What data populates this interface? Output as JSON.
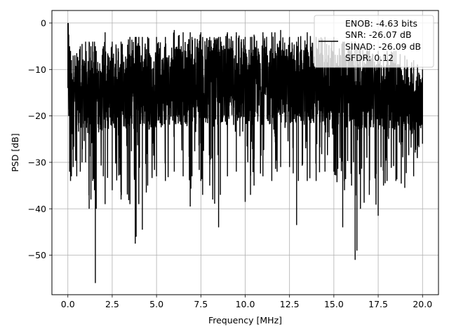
{
  "chart_data": {
    "type": "line",
    "xlabel": "Frequency [MHz]",
    "ylabel": "PSD [dB]",
    "xlim": [
      -0.9,
      20.9
    ],
    "ylim": [
      -58.5,
      2.7
    ],
    "x_ticks": [
      0.0,
      2.5,
      5.0,
      7.5,
      10.0,
      12.5,
      15.0,
      17.5,
      20.0
    ],
    "x_tick_labels": [
      "0.0",
      "2.5",
      "5.0",
      "7.5",
      "10.0",
      "12.5",
      "15.0",
      "17.5",
      "20.0"
    ],
    "y_ticks": [
      0,
      -10,
      -20,
      -30,
      -40,
      -50
    ],
    "y_tick_labels": [
      "0",
      "−10",
      "−20",
      "−30",
      "−40",
      "−50"
    ],
    "grid": true,
    "legend_position": "top-right",
    "legend_entries": [
      "ENOB: -4.63 bits",
      "SNR: -26.07 dB",
      "SINAD: -26.09 dB",
      "SFDR: 0.12"
    ],
    "series": [
      {
        "color": "#000000",
        "x": [
          0.0,
          0.05,
          0.1,
          0.15,
          0.2,
          0.3,
          0.5,
          0.7,
          0.8,
          1.0,
          1.2,
          1.3,
          1.4,
          1.5,
          1.55,
          1.6,
          2.0,
          2.1,
          2.5,
          3.0,
          3.5,
          3.8,
          3.85,
          4.0,
          4.2,
          4.5,
          5.0,
          5.5,
          6.0,
          6.5,
          6.9,
          7.0,
          7.5,
          7.6,
          8.0,
          8.5,
          8.6,
          9.0,
          9.5,
          10.0,
          10.3,
          10.5,
          11.0,
          11.5,
          12.0,
          12.5,
          12.9,
          13.0,
          13.5,
          14.0,
          14.5,
          15.0,
          15.5,
          15.6,
          16.0,
          16.2,
          16.3,
          16.5,
          17.0,
          17.5,
          17.8,
          18.0,
          18.5,
          19.0,
          19.5,
          20.0
        ],
        "y_upper": [
          0.0,
          -2.5,
          -5.0,
          -6.0,
          -8.0,
          -7.0,
          -6.5,
          -5.0,
          -4.5,
          -4.0,
          -4.0,
          -5.0,
          -4.0,
          -4.0,
          -5.0,
          -6.0,
          -5.0,
          -2.0,
          -4.0,
          -4.0,
          -3.0,
          -3.0,
          -3.0,
          -3.0,
          -3.0,
          -3.0,
          -3.0,
          -3.0,
          -1.5,
          -2.0,
          -2.0,
          -3.0,
          -2.0,
          -3.0,
          -3.0,
          -3.0,
          -3.0,
          -2.0,
          -2.0,
          -3.0,
          -3.0,
          -2.5,
          -2.0,
          -2.0,
          -1.5,
          -3.0,
          -4.0,
          -3.0,
          -2.0,
          -3.0,
          -3.0,
          -3.0,
          -4.0,
          -4.0,
          -4.0,
          -4.0,
          -5.0,
          -5.0,
          -5.0,
          -6.0,
          -7.0,
          -6.0,
          -6.0,
          -7.0,
          -8.0,
          -10.0
        ],
        "y_lower": [
          -14.0,
          -20.0,
          -32.0,
          -34.0,
          -33.0,
          -31.0,
          -33.0,
          -32.0,
          -30.0,
          -30.0,
          -40.0,
          -38.0,
          -34.0,
          -36.0,
          -56.0,
          -40.0,
          -33.0,
          -39.0,
          -36.0,
          -38.0,
          -39.0,
          -47.5,
          -46.0,
          -39.0,
          -44.5,
          -35.0,
          -33.0,
          -34.0,
          -32.0,
          -33.0,
          -39.5,
          -33.0,
          -34.0,
          -37.0,
          -35.0,
          -44.0,
          -37.0,
          -33.0,
          -32.0,
          -38.5,
          -37.0,
          -35.0,
          -33.0,
          -34.0,
          -31.0,
          -31.0,
          -43.5,
          -34.0,
          -34.0,
          -34.0,
          -32.0,
          -32.0,
          -44.0,
          -36.0,
          -35.0,
          -51.0,
          -49.0,
          -40.0,
          -37.0,
          -41.5,
          -35.0,
          -34.0,
          -34.0,
          -35.5,
          -33.0,
          -26.0
        ],
        "y_typical_low": [
          -14,
          -22,
          -25,
          -25,
          -24,
          -24,
          -24,
          -23,
          -23,
          -23,
          -24,
          -24,
          -24,
          -24,
          -25,
          -24,
          -23,
          -23,
          -23,
          -23,
          -23,
          -24,
          -24,
          -23,
          -23,
          -23,
          -23,
          -22,
          -22,
          -22,
          -22,
          -22,
          -22,
          -22,
          -22,
          -23,
          -22,
          -22,
          -22,
          -22,
          -22,
          -22,
          -22,
          -22,
          -22,
          -22,
          -22,
          -22,
          -22,
          -22,
          -22,
          -23,
          -23,
          -23,
          -23,
          -23,
          -23,
          -23,
          -23,
          -23,
          -23,
          -23,
          -23,
          -23,
          -24,
          -22
        ],
        "y_typical_high": [
          -5,
          -7,
          -8,
          -9,
          -10,
          -10,
          -9,
          -8,
          -8,
          -7,
          -7,
          -8,
          -7,
          -7,
          -8,
          -8,
          -7,
          -6,
          -7,
          -7,
          -6,
          -6,
          -6,
          -6,
          -6,
          -6,
          -6,
          -6,
          -5,
          -5,
          -5,
          -6,
          -5,
          -5,
          -5,
          -5,
          -5,
          -5,
          -5,
          -5,
          -5,
          -5,
          -5,
          -5,
          -5,
          -5,
          -6,
          -6,
          -5,
          -5,
          -6,
          -6,
          -6,
          -6,
          -6,
          -6,
          -7,
          -7,
          -7,
          -8,
          -8,
          -8,
          -8,
          -9,
          -10,
          -11
        ]
      }
    ]
  }
}
